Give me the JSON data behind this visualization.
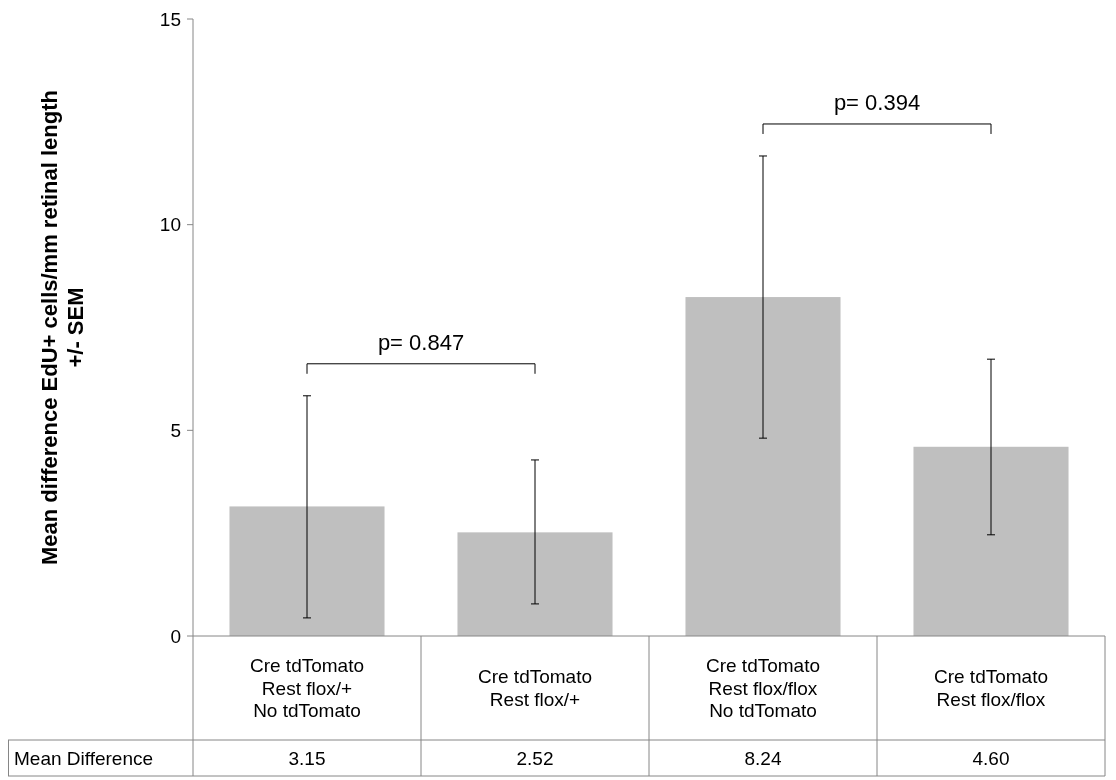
{
  "chart_data": {
    "type": "bar",
    "ylabel": "Mean difference EdU+ cells/mm retinal length\n+/- SEM",
    "categories": [
      "Cre tdTomato\nRest flox/+\nNo tdTomato",
      "Cre tdTomato\nRest flox/+",
      "Cre tdTomato\nRest flox/flox\nNo tdTomato",
      "Cre tdTomato\nRest flox/flox"
    ],
    "series": [
      {
        "name": "Mean Difference",
        "color": "#bfbfbf",
        "values": [
          3.15,
          2.52,
          8.24,
          4.6
        ],
        "errors": [
          [
            0.44,
            5.84
          ],
          [
            0.78,
            4.28
          ],
          [
            4.81,
            11.67
          ],
          [
            2.46,
            6.73
          ]
        ],
        "value_labels": [
          "3.15",
          "2.52",
          "8.24",
          "4.60"
        ]
      }
    ],
    "ylim": [
      0,
      15
    ],
    "yticks": [
      0,
      5,
      10,
      15
    ],
    "grid": false,
    "annotations": [
      "p= 0.847",
      "p= 0.394"
    ]
  }
}
